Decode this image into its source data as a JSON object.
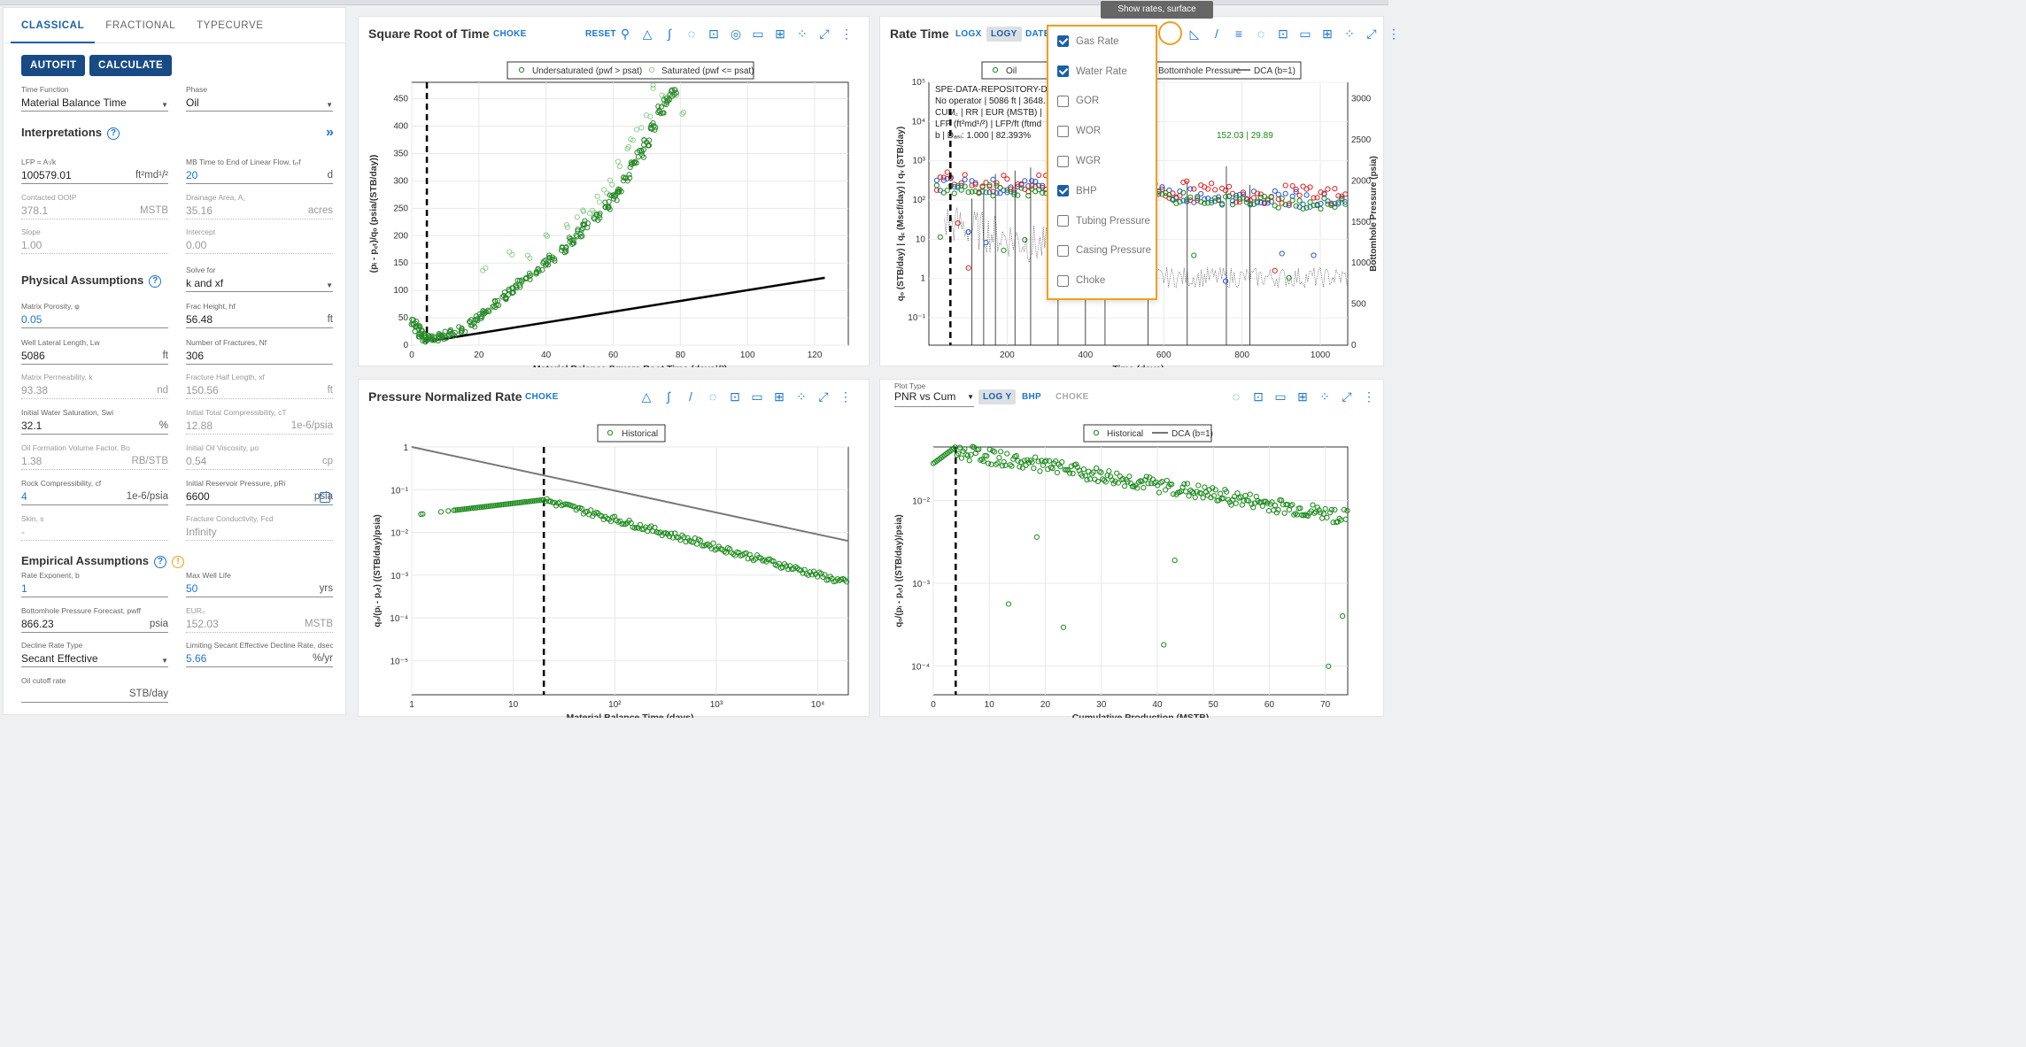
{
  "tabs": [
    "CLASSICAL",
    "FRACTIONAL",
    "TYPECURVE"
  ],
  "buttons": {
    "autofit": "AUTOFIT",
    "calculate": "CALCULATE"
  },
  "sections": {
    "interpretations": "Interpretations",
    "physical": "Physical Assumptions",
    "empirical": "Empirical Assumptions"
  },
  "fields": [
    {
      "label": "Time Function",
      "value": "Material Balance Time",
      "unit": "",
      "dropdown": true
    },
    {
      "label": "Phase",
      "value": "Oil",
      "unit": "",
      "dropdown": true
    },
    {
      "label": "LFP = A√k",
      "value": "100579.01",
      "unit": "ft²md¹/²"
    },
    {
      "label": "MB Time to End of Linear Flow, tₑₗf",
      "value": "20",
      "unit": "d",
      "blue": true
    },
    {
      "label": "Contacted OOIP",
      "value": "378.1",
      "unit": "MSTB",
      "disabled": true
    },
    {
      "label": "Drainage Area, A꜀",
      "value": "35.16",
      "unit": "acres",
      "disabled": true
    },
    {
      "label": "Slope",
      "value": "1.00",
      "unit": "",
      "disabled": true
    },
    {
      "label": "Intercept",
      "value": "0.00",
      "unit": "",
      "disabled": true
    },
    {
      "label": "",
      "value": "",
      "unit": ""
    },
    {
      "label": "Solve for",
      "value": "k and xf",
      "unit": "",
      "dropdown": true
    },
    {
      "label": "Matrix Porosity, φ",
      "value": "0.05",
      "unit": "",
      "blue": true
    },
    {
      "label": "Frac Height, hf",
      "value": "56.48",
      "unit": "ft"
    },
    {
      "label": "Well Lateral Length, Lw",
      "value": "5086",
      "unit": "ft"
    },
    {
      "label": "Number of Fractures, Nf",
      "value": "306",
      "unit": ""
    },
    {
      "label": "Matrix Permeability, k",
      "value": "93.38",
      "unit": "nd",
      "disabled": true
    },
    {
      "label": "Fracture Half Length, xf",
      "value": "150.56",
      "unit": "ft",
      "disabled": true
    },
    {
      "label": "Initial Water Saturation, Swi",
      "value": "32.1",
      "unit": "%"
    },
    {
      "label": "Initial Total Compressibility, cT",
      "value": "12.88",
      "unit": "1e-6/psia",
      "disabled": true
    },
    {
      "label": "Oil Formation Volume Factor, Bo",
      "value": "1.38",
      "unit": "RB/STB",
      "disabled": true
    },
    {
      "label": "Initial Oil Viscosity, μo",
      "value": "0.54",
      "unit": "cp",
      "disabled": true
    },
    {
      "label": "Rock Compressibility, cf",
      "value": "4",
      "unit": "1e-6/psia",
      "blue": true
    },
    {
      "label": "Initial Reservoir Pressure, pRi",
      "value": "6600",
      "unit": "psia"
    },
    {
      "label": "Skin, s",
      "value": "-",
      "unit": "",
      "disabled": true
    },
    {
      "label": "Fracture Conductivity, Fcd",
      "value": "Infinity",
      "unit": "",
      "disabled": true
    },
    {
      "label": "Rate Exponent, b",
      "value": "1",
      "unit": "",
      "blue": true
    },
    {
      "label": "Max Well Life",
      "value": "50",
      "unit": "yrs",
      "blue": true
    },
    {
      "label": "Bottomhole Pressure Forecast, pwff",
      "value": "866.23",
      "unit": "psia"
    },
    {
      "label": "EUR₀",
      "value": "152.03",
      "unit": "MSTB",
      "disabled": true
    },
    {
      "label": "Decline Rate Type",
      "value": "Secant Effective",
      "unit": "",
      "dropdown": true
    },
    {
      "label": "Limiting Secant Effective Decline Rate, dsec,lir",
      "value": "5.66",
      "unit": "%/yr",
      "blue": true
    },
    {
      "label": "Oil cutoff rate",
      "value": "",
      "unit": "STB/day"
    }
  ],
  "panels": {
    "srt": {
      "title": "Square Root of Time",
      "link": "CHOKE",
      "reset": "RESET"
    },
    "rt": {
      "title": "Rate Time",
      "logx": "LOGX",
      "logy": "LOGY",
      "date": "DATE"
    },
    "pnr": {
      "title": "Pressure Normalized Rate",
      "link": "CHOKE"
    },
    "cum": {
      "plot_type_label": "Plot Type",
      "plot_type": "PNR vs Cum",
      "logy": "LOG Y",
      "bhp": "BHP",
      "choke": "CHOKE"
    }
  },
  "tooltip": "Show rates, surface pressures",
  "dropdown_items": [
    {
      "label": "Gas Rate",
      "checked": true
    },
    {
      "label": "Water Rate",
      "checked": true
    },
    {
      "label": "GOR",
      "checked": false
    },
    {
      "label": "WOR",
      "checked": false
    },
    {
      "label": "WGR",
      "checked": false
    },
    {
      "label": "BHP",
      "checked": true
    },
    {
      "label": "Tubing Pressure",
      "checked": false
    },
    {
      "label": "Casing Pressure",
      "checked": false
    },
    {
      "label": "Choke",
      "checked": false
    }
  ],
  "chart_data": [
    {
      "type": "scatter",
      "title": "Square Root of Time",
      "xlabel": "Material Balance Square Root Time (days¹/²)",
      "ylabel": "(pᵢ - p꜀ₜ)/qₒ (psia/(STB/day))",
      "xlim": [
        0,
        130
      ],
      "ylim": [
        0,
        480
      ],
      "xticks": [
        0,
        20,
        40,
        60,
        80,
        100,
        120
      ],
      "yticks": [
        0,
        50,
        100,
        150,
        200,
        250,
        300,
        350,
        400,
        450
      ],
      "legend": [
        "Undersaturated (pwf > psat)",
        "Saturated (pwf <= psat)"
      ],
      "line": {
        "x": [
          6,
          123
        ],
        "y": [
          8,
          123
        ]
      },
      "vline_x": 4.5,
      "series": [
        {
          "name": "Saturated (pwf <= psat)",
          "x": [
            22,
            30,
            35,
            40,
            46,
            50,
            52,
            54,
            56,
            58,
            60,
            62,
            64,
            66,
            68,
            70,
            72,
            75,
            78,
            80
          ],
          "y": [
            140,
            165,
            160,
            205,
            220,
            240,
            245,
            245,
            265,
            280,
            295,
            330,
            360,
            380,
            395,
            420,
            470,
            460,
            450,
            420
          ]
        },
        {
          "name": "Undersaturated (pwf > psat)",
          "x": [
            1,
            2,
            3,
            4,
            5,
            6,
            8,
            10,
            12,
            15,
            18,
            20,
            22,
            25,
            28,
            30,
            32,
            35,
            38,
            40,
            42,
            45,
            48,
            50,
            52,
            55,
            58,
            60,
            62,
            64,
            66,
            68,
            70,
            72,
            74,
            76,
            78
          ],
          "y": [
            40,
            30,
            22,
            15,
            12,
            10,
            14,
            18,
            22,
            30,
            40,
            50,
            60,
            75,
            90,
            102,
            112,
            125,
            135,
            150,
            160,
            175,
            190,
            205,
            220,
            235,
            255,
            270,
            285,
            305,
            330,
            350,
            370,
            400,
            430,
            445,
            460
          ]
        }
      ]
    },
    {
      "type": "scatter",
      "title": "Rate Time",
      "xlabel": "Time (days)",
      "ylabel": "qₒ (STB/day) | q꜀ (Mscf/day) | qᵥ (STB/day)",
      "y2label": "Bottomhole Pressure (psia)",
      "xticks": [
        200,
        400,
        600,
        800,
        1000
      ],
      "y2ticks": [
        0,
        500,
        1000,
        1500,
        2000,
        2500,
        3000
      ],
      "legend": [
        "Oil",
        "Bottomhole Pressure",
        "DCA (b=1)"
      ],
      "annotation": [
        "SPE-DATA-REPOSITORY-D",
        "No operator | 5086 ft | 3648.",
        "CUM꜀ | RR | EUR (MSTB) |",
        "LFP (ft²md¹/²) | LFP/ft (ftmd",
        "b | Dₐₛᵢ: 1.000 | 82.393%",
        "152.03 | 29.89"
      ]
    },
    {
      "type": "scatter",
      "title": "Pressure Normalized Rate",
      "xlabel": "Material Balance Time (days)",
      "ylabel": "qₒ/(pᵢ - p꜀ₜ) ((STB/day)/psia)",
      "legend": [
        "Historical"
      ],
      "xticks": [
        "1",
        "10",
        "10²",
        "10³",
        "10⁴"
      ],
      "yticks": [
        "1",
        "10⁻¹",
        "10⁻²",
        "10⁻³",
        "10⁻⁴",
        "10⁻⁵"
      ]
    },
    {
      "type": "scatter",
      "title": "PNR vs Cum",
      "xlabel": "Cumulative Production (MSTB)",
      "ylabel": "qₒ/(pᵢ - p꜀ₜ) ((STB/day)/psia)",
      "legend": [
        "Historical",
        "DCA (b=1)"
      ],
      "xticks": [
        0,
        10,
        20,
        30,
        40,
        50,
        60,
        70
      ],
      "yticks": [
        "10⁻²",
        "10⁻³",
        "10⁻⁴"
      ]
    }
  ]
}
